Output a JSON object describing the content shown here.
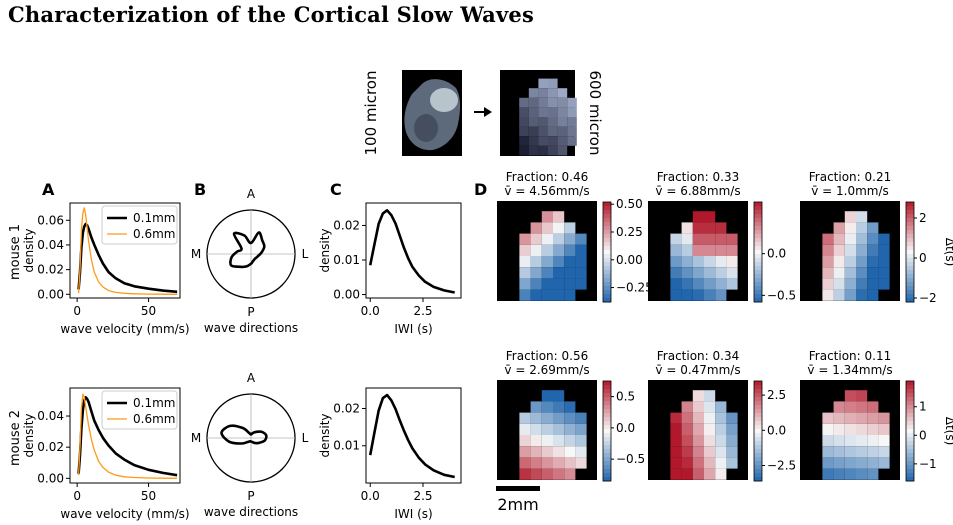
{
  "title": "Characterization of the Cortical Slow Waves",
  "downsample": {
    "left_label": "100 micron",
    "right_label": "600 micron"
  },
  "panel_letters": {
    "a": "A",
    "b": "B",
    "c": "C",
    "d": "D"
  },
  "row_labels": [
    "mouse 1",
    "mouse 2"
  ],
  "scale_bar_label": "2mm",
  "heatmap_colors": {
    "neg": "#2166ac",
    "mid": "#f7f7f7",
    "pos": "#b2182b",
    "background": "#000000"
  },
  "cortex_mask": [
    "000000000",
    "000011000",
    "000111100",
    "001111110",
    "001111110",
    "001111110",
    "001111110",
    "001111110",
    "001111100",
    "000000000"
  ],
  "chart_data": [
    {
      "type": "line",
      "panel": "A",
      "row": "mouse 1",
      "xlabel": "wave velocity (mm/s)",
      "ylabel": "density",
      "xlim": [
        -5,
        72
      ],
      "ylim": [
        -0.003,
        0.074
      ],
      "xticks": [
        "0",
        "50"
      ],
      "xtick_values": [
        0,
        50
      ],
      "yticks": [
        "0.00",
        "0.02",
        "0.04",
        "0.06"
      ],
      "ytick_values": [
        0,
        0.02,
        0.04,
        0.06
      ],
      "legend": "top-right",
      "series": [
        {
          "name": "0.1mm",
          "color": "#000000",
          "width": 2.6,
          "x": [
            1,
            2,
            3,
            4,
            5,
            6,
            7,
            8,
            10,
            12,
            15,
            18,
            22,
            27,
            33,
            40,
            50,
            60,
            70
          ],
          "y": [
            0.004,
            0.018,
            0.038,
            0.05,
            0.055,
            0.057,
            0.056,
            0.053,
            0.046,
            0.04,
            0.032,
            0.025,
            0.018,
            0.013,
            0.009,
            0.0065,
            0.0045,
            0.003,
            0.002
          ]
        },
        {
          "name": "0.6mm",
          "color": "#ff9a16",
          "width": 1.3,
          "x": [
            1,
            2,
            3,
            4,
            5,
            6,
            7,
            8,
            10,
            12,
            15,
            18,
            22,
            27,
            33,
            40,
            50,
            60,
            70
          ],
          "y": [
            0.001,
            0.02,
            0.052,
            0.066,
            0.07,
            0.064,
            0.054,
            0.043,
            0.028,
            0.018,
            0.01,
            0.006,
            0.003,
            0.0015,
            0.0008,
            0.0004,
            0.0002,
            0.0001,
            0.0
          ]
        }
      ]
    },
    {
      "type": "polar",
      "panel": "B",
      "row": "mouse 1",
      "xlabel": "wave directions",
      "directions": [
        "A",
        "L",
        "P",
        "M"
      ],
      "angles_deg": [
        0,
        20,
        40,
        60,
        80,
        100,
        120,
        140,
        160,
        180,
        200,
        220,
        240,
        260,
        280,
        300,
        320,
        340
      ],
      "r": [
        0.25,
        0.52,
        0.4,
        0.35,
        0.25,
        0.18,
        0.15,
        0.14,
        0.16,
        0.22,
        0.3,
        0.38,
        0.52,
        0.45,
        0.32,
        0.25,
        0.6,
        0.45
      ]
    },
    {
      "type": "line",
      "panel": "C",
      "row": "mouse 1",
      "xlabel": "IWI (s)",
      "ylabel": "density",
      "xlim": [
        -0.2,
        4.3
      ],
      "ylim": [
        -0.001,
        0.0265
      ],
      "xticks": [
        "0.0",
        "2.5"
      ],
      "xtick_values": [
        0,
        2.5
      ],
      "yticks": [
        "0.00",
        "0.01",
        "0.02"
      ],
      "ytick_values": [
        0,
        0.01,
        0.02
      ],
      "series": [
        {
          "color": "#000000",
          "width": 2.6,
          "x": [
            0,
            0.2,
            0.4,
            0.6,
            0.8,
            1.0,
            1.2,
            1.4,
            1.6,
            1.8,
            2.0,
            2.3,
            2.6,
            3.0,
            3.5,
            4.0
          ],
          "y": [
            0.0085,
            0.0145,
            0.0205,
            0.0235,
            0.0244,
            0.023,
            0.0205,
            0.017,
            0.0135,
            0.0105,
            0.008,
            0.0055,
            0.0037,
            0.0022,
            0.0012,
            0.0006
          ]
        }
      ]
    },
    {
      "type": "line",
      "panel": "A",
      "row": "mouse 2",
      "xlabel": "wave velocity (mm/s)",
      "ylabel": "density",
      "xlim": [
        -5,
        72
      ],
      "ylim": [
        -0.003,
        0.058
      ],
      "xticks": [
        "0",
        "50"
      ],
      "xtick_values": [
        0,
        50
      ],
      "yticks": [
        "0.00",
        "0.02",
        "0.04"
      ],
      "ytick_values": [
        0,
        0.02,
        0.04
      ],
      "legend": "top-right",
      "series": [
        {
          "name": "0.1mm",
          "color": "#000000",
          "width": 2.6,
          "x": [
            1,
            2,
            3,
            4,
            5,
            6,
            7,
            8,
            10,
            12,
            15,
            18,
            22,
            27,
            33,
            40,
            50,
            60,
            70
          ],
          "y": [
            0.003,
            0.015,
            0.032,
            0.044,
            0.05,
            0.052,
            0.051,
            0.049,
            0.043,
            0.037,
            0.031,
            0.026,
            0.021,
            0.016,
            0.012,
            0.0085,
            0.0055,
            0.0035,
            0.002
          ]
        },
        {
          "name": "0.6mm",
          "color": "#ff9a16",
          "width": 1.3,
          "x": [
            1,
            2,
            3,
            4,
            5,
            6,
            7,
            8,
            10,
            12,
            15,
            18,
            22,
            27,
            33,
            40,
            50,
            60,
            70
          ],
          "y": [
            0.002,
            0.02,
            0.045,
            0.054,
            0.052,
            0.046,
            0.04,
            0.034,
            0.025,
            0.018,
            0.011,
            0.007,
            0.004,
            0.002,
            0.001,
            0.0005,
            0.0002,
            0.0001,
            0.0
          ]
        }
      ]
    },
    {
      "type": "polar",
      "panel": "B",
      "row": "mouse 2",
      "xlabel": "wave directions",
      "directions": [
        "A",
        "L",
        "P",
        "M"
      ],
      "angles_deg": [
        0,
        20,
        40,
        60,
        80,
        100,
        120,
        140,
        160,
        180,
        200,
        220,
        240,
        260,
        280,
        300,
        320,
        340
      ],
      "r": [
        0.08,
        0.12,
        0.18,
        0.28,
        0.35,
        0.32,
        0.22,
        0.15,
        0.1,
        0.08,
        0.08,
        0.12,
        0.25,
        0.5,
        0.68,
        0.55,
        0.3,
        0.12
      ]
    },
    {
      "type": "line",
      "panel": "C",
      "row": "mouse 2",
      "xlabel": "IWI (s)",
      "ylabel": "density",
      "xlim": [
        -0.2,
        4.3
      ],
      "ylim": [
        0.0,
        0.0255
      ],
      "xticks": [
        "0.0",
        "2.5"
      ],
      "xtick_values": [
        0,
        2.5
      ],
      "yticks": [
        "0.01",
        "0.02"
      ],
      "ytick_values": [
        0.01,
        0.02
      ],
      "series": [
        {
          "color": "#000000",
          "width": 2.6,
          "x": [
            0,
            0.2,
            0.4,
            0.6,
            0.8,
            1.0,
            1.2,
            1.4,
            1.6,
            1.8,
            2.0,
            2.3,
            2.6,
            3.0,
            3.5,
            4.0
          ],
          "y": [
            0.0075,
            0.0135,
            0.0195,
            0.0228,
            0.0236,
            0.0222,
            0.0198,
            0.0168,
            0.014,
            0.0115,
            0.0093,
            0.0068,
            0.005,
            0.0034,
            0.0022,
            0.0016
          ]
        }
      ]
    },
    {
      "type": "heatmap",
      "panel": "D",
      "row": "mouse 1",
      "items": [
        {
          "fraction_label": "Fraction: 0.46",
          "velocity_label": "v̄ = 4.56mm/s",
          "vmin": -0.38,
          "vmax": 0.52,
          "pattern": "v1",
          "ticks": [
            0.5,
            0.25,
            0.0,
            -0.25
          ],
          "tick_labels": [
            "0.50",
            "0.25",
            "0.00",
            "−0.25"
          ],
          "cbar_label": ""
        },
        {
          "fraction_label": "Fraction: 0.33",
          "velocity_label": "v̄ = 6.88mm/s",
          "vmin": -0.58,
          "vmax": 0.62,
          "pattern": "v2",
          "ticks": [
            0.0,
            -0.5
          ],
          "tick_labels": [
            "0.0",
            "−0.5"
          ],
          "cbar_label": ""
        },
        {
          "fraction_label": "Fraction: 0.21",
          "velocity_label": "v̄ = 1.0mm/s",
          "vmin": -2.2,
          "vmax": 2.8,
          "pattern": "v3",
          "ticks": [
            2,
            0,
            -2
          ],
          "tick_labels": [
            "2",
            "0",
            "−2"
          ],
          "cbar_label": "Δt(s)"
        }
      ]
    },
    {
      "type": "heatmap",
      "panel": "D",
      "row": "mouse 2",
      "items": [
        {
          "fraction_label": "Fraction: 0.56",
          "velocity_label": "v̄ = 2.69mm/s",
          "vmin": -0.85,
          "vmax": 0.75,
          "pattern": "v4",
          "ticks": [
            0.5,
            0.0,
            -0.5
          ],
          "tick_labels": [
            "0.5",
            "0.0",
            "−0.5"
          ],
          "cbar_label": ""
        },
        {
          "fraction_label": "Fraction: 0.34",
          "velocity_label": "v̄ = 0.47mm/s",
          "vmin": -3.6,
          "vmax": 3.5,
          "pattern": "v5",
          "ticks": [
            2.5,
            0.0,
            -2.5
          ],
          "tick_labels": [
            "2.5",
            "0.0",
            "−2.5"
          ],
          "cbar_label": ""
        },
        {
          "fraction_label": "Fraction: 0.11",
          "velocity_label": "v̄ = 1.34mm/s",
          "vmin": -1.6,
          "vmax": 1.9,
          "pattern": "v6",
          "ticks": [
            1,
            0,
            -1
          ],
          "tick_labels": [
            "1",
            "0",
            "−1"
          ],
          "cbar_label": "Δt(s)"
        }
      ]
    }
  ]
}
